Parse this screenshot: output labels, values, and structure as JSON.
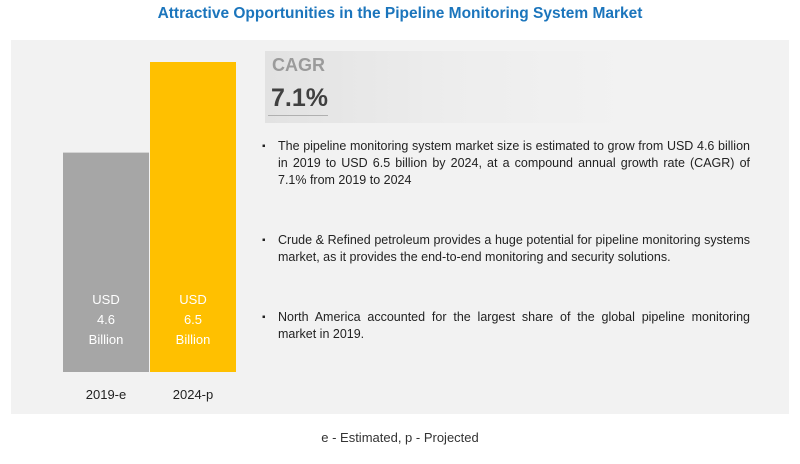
{
  "title": "Attractive Opportunities in the Pipeline Monitoring System Market",
  "cagr": {
    "label": "CAGR",
    "value": "7.1%"
  },
  "bullets": [
    "The pipeline monitoring system market size is estimated to grow from USD 4.6 billion in 2019 to USD 6.5 billion by 2024, at a compound annual growth rate (CAGR) of 7.1% from 2019 to 2024",
    "Crude & Refined petroleum provides a huge potential for pipeline monitoring systems market, as it provides the end-to-end monitoring and security solutions.",
    "North America accounted for the largest share of the global pipeline monitoring market in 2019."
  ],
  "bullet_glyph": "▪",
  "footnote": "e - Estimated, p - Projected",
  "chart_data": {
    "type": "bar",
    "categories": [
      "2019-e",
      "2024-p"
    ],
    "values": [
      4.6,
      6.5
    ],
    "units": "USD Billion",
    "data_labels": [
      [
        "USD",
        "4.6",
        "Billion"
      ],
      [
        "USD",
        "6.5",
        "Billion"
      ]
    ],
    "colors": [
      "#a6a6a6",
      "#ffc000"
    ],
    "ylim": [
      0,
      6.5
    ],
    "title": "",
    "xlabel": "",
    "ylabel": "",
    "grid": false,
    "legend": "none"
  }
}
